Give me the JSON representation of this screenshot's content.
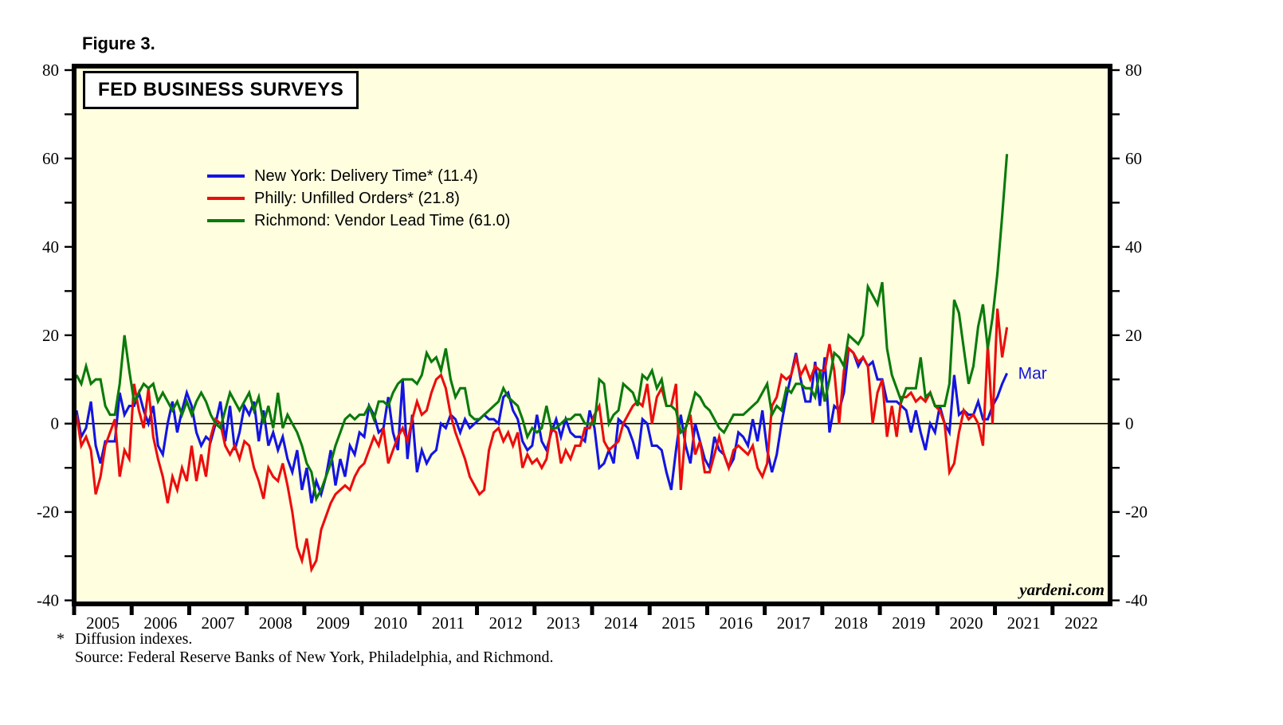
{
  "figure_label": "Figure 3.",
  "chart_title": "FED BUSINESS SURVEYS",
  "end_label": "Mar",
  "watermark": "yardeni.com",
  "footnote": {
    "marker": "*",
    "line1": "Diffusion indexes.",
    "line2": "Source: Federal Reserve Banks of New York, Philadelphia, and Richmond."
  },
  "chart_data": {
    "type": "line",
    "title": "FED BUSINESS SURVEYS",
    "x_domain": [
      2005,
      2023
    ],
    "x_tick_years": [
      2005,
      2006,
      2007,
      2008,
      2009,
      2010,
      2011,
      2012,
      2013,
      2014,
      2015,
      2016,
      2017,
      2018,
      2019,
      2020,
      2021,
      2022
    ],
    "y_axis": {
      "min": -40,
      "max": 80,
      "minor_step": 10,
      "label_step": 20,
      "labels": [
        80,
        60,
        40,
        20,
        0,
        -20,
        -40
      ],
      "sides": [
        "left",
        "right"
      ]
    },
    "plot_bg": "#FFFFE0",
    "zero_line": 0,
    "legend": [
      {
        "label": "New York: Delivery Time* (11.4)",
        "color": "#1414E1",
        "latest": 11.4
      },
      {
        "label": "Philly: Unfilled Orders* (21.8)",
        "color": "#EC0D0D",
        "latest": 21.8
      },
      {
        "label": "Richmond: Vendor Lead Time (61.0)",
        "color": "#0B7A0B",
        "latest": 61.0
      }
    ],
    "last_point": {
      "year": 2021,
      "month": 3,
      "label": "Mar"
    },
    "series": [
      {
        "name": "New York: Delivery Time",
        "color": "#1414E1",
        "monthly": {
          "2005": [
            3,
            -3,
            -1,
            5,
            -5,
            -9,
            -4,
            -4,
            -4,
            7,
            2,
            4
          ],
          "2006": [
            4,
            7,
            3,
            0,
            4,
            -5,
            -7,
            0,
            5,
            -2,
            3,
            7
          ],
          "2007": [
            4,
            -2,
            -5,
            -3,
            -4,
            0,
            5,
            -4,
            4,
            -6,
            -2,
            4
          ],
          "2008": [
            2,
            5,
            -4,
            3,
            -5,
            -2,
            -6,
            -3,
            -8,
            -11,
            -6,
            -15
          ],
          "2009": [
            -10,
            -18,
            -13,
            -16,
            -12,
            -6,
            -14,
            -8,
            -12,
            -5,
            -7,
            -2
          ],
          "2010": [
            -3,
            4,
            2,
            -2,
            -1,
            6,
            -2,
            -6,
            10,
            -8,
            2,
            -11
          ],
          "2011": [
            -6,
            -9,
            -7,
            -6,
            0,
            -1,
            2,
            1,
            -2,
            1,
            -1,
            0
          ],
          "2012": [
            1,
            2,
            1,
            1,
            0,
            6,
            7,
            3,
            1,
            -4,
            -6,
            -5
          ],
          "2013": [
            2,
            -4,
            -6,
            -2,
            1,
            -3,
            1,
            -2,
            -3,
            -3,
            -4,
            3
          ],
          "2014": [
            -1,
            -10,
            -9,
            -6,
            -9,
            1,
            0,
            -1,
            -4,
            -8,
            1,
            0
          ],
          "2015": [
            -5,
            -5,
            -6,
            -11,
            -15,
            -6,
            2,
            -5,
            -9,
            0,
            -4,
            -8
          ],
          "2016": [
            -10,
            -3,
            -6,
            -7,
            -10,
            -8,
            -2,
            -3,
            -5,
            1,
            -4,
            3
          ],
          "2017": [
            -6,
            -11,
            -7,
            0,
            6,
            11,
            16,
            10,
            5,
            5,
            14,
            4
          ],
          "2018": [
            15,
            -2,
            4,
            3,
            7,
            17,
            16,
            13,
            15,
            13,
            14,
            10
          ],
          "2019": [
            10,
            5,
            5,
            5,
            4,
            3,
            -2,
            3,
            -2,
            -6,
            0,
            -2
          ],
          "2020": [
            4,
            0,
            -2,
            11,
            2,
            3,
            2,
            2,
            5,
            1,
            1,
            4
          ],
          "2021": [
            6,
            9,
            11.4
          ]
        }
      },
      {
        "name": "Philly: Unfilled Orders",
        "color": "#EC0D0D",
        "monthly": {
          "2005": [
            2,
            -5,
            -3,
            -6,
            -16,
            -12,
            -5,
            -2,
            1,
            -12,
            -6,
            -8
          ],
          "2006": [
            9,
            3,
            -1,
            8,
            -3,
            -8,
            -12,
            -18,
            -12,
            -15,
            -10,
            -13
          ],
          "2007": [
            -5,
            -13,
            -7,
            -12,
            -3,
            1,
            0,
            -5,
            -7,
            -5,
            -8,
            -4
          ],
          "2008": [
            -5,
            -10,
            -13,
            -17,
            -10,
            -12,
            -13,
            -9,
            -14,
            -20,
            -28,
            -31
          ],
          "2009": [
            -26,
            -33,
            -31,
            -24,
            -21,
            -18,
            -16,
            -15,
            -14,
            -15,
            -12,
            -10
          ],
          "2010": [
            -9,
            -6,
            -3,
            -5,
            -1,
            -9,
            -6,
            -3,
            -1,
            -4,
            1,
            5
          ],
          "2011": [
            2,
            3,
            7,
            10,
            11,
            8,
            2,
            -2,
            -5,
            -8,
            -12,
            -14
          ],
          "2012": [
            -16,
            -15,
            -6,
            -2,
            -1,
            -4,
            -2,
            -5,
            -2,
            -10,
            -7,
            -9
          ],
          "2013": [
            -8,
            -10,
            -8,
            -1,
            -2,
            -9,
            -6,
            -8,
            -5,
            -5,
            -1,
            -1
          ],
          "2014": [
            2,
            4,
            -4,
            -6,
            -5,
            -4,
            0,
            2,
            4,
            5,
            4,
            9
          ],
          "2015": [
            0,
            6,
            8,
            4,
            4,
            9,
            -15,
            -1,
            2,
            -7,
            -4,
            -11
          ],
          "2016": [
            -11,
            -7,
            -3,
            -7,
            -10,
            -6,
            -5,
            -6,
            -7,
            -5,
            -10,
            -12
          ],
          "2017": [
            -9,
            4,
            6,
            11,
            10,
            11,
            15,
            11,
            13,
            10,
            13,
            12
          ],
          "2018": [
            12,
            18,
            12,
            0,
            12,
            17,
            16,
            14,
            15,
            13,
            0,
            7
          ],
          "2019": [
            10,
            -3,
            4,
            -3,
            6,
            6,
            7,
            5,
            6,
            5,
            7,
            4
          ],
          "2020": [
            3,
            0,
            -11,
            -9,
            -2,
            3,
            1,
            2,
            0,
            -5,
            18,
            0
          ],
          "2021": [
            26,
            15,
            21.8
          ]
        }
      },
      {
        "name": "Richmond: Vendor Lead Time",
        "color": "#0B7A0B",
        "monthly": {
          "2005": [
            11,
            9,
            13,
            9,
            10,
            10,
            4,
            2,
            2,
            9,
            20,
            12
          ],
          "2006": [
            5,
            7,
            9,
            8,
            9,
            5,
            7,
            5,
            3,
            5,
            2,
            5
          ],
          "2007": [
            2,
            5,
            7,
            5,
            2,
            0,
            -1,
            3,
            7,
            5,
            3,
            5
          ],
          "2008": [
            7,
            3,
            6,
            0,
            4,
            -1,
            7,
            -1,
            2,
            0,
            -2,
            -5
          ],
          "2009": [
            -9,
            -11,
            -17,
            -15,
            -12,
            -9,
            -5,
            -2,
            1,
            2,
            1,
            2
          ],
          "2010": [
            2,
            4,
            1,
            5,
            5,
            4,
            7,
            9,
            10,
            10,
            10,
            9
          ],
          "2011": [
            11,
            16,
            14,
            15,
            12,
            17,
            10,
            6,
            8,
            8,
            2,
            1
          ],
          "2012": [
            1,
            2,
            3,
            4,
            5,
            8,
            6,
            5,
            4,
            1,
            -3,
            -1
          ],
          "2013": [
            -2,
            -1,
            4,
            -1,
            -1,
            0,
            1,
            1,
            2,
            2,
            0,
            0
          ],
          "2014": [
            0,
            10,
            9,
            0,
            2,
            3,
            9,
            8,
            7,
            4,
            11,
            10
          ],
          "2015": [
            12,
            8,
            10,
            4,
            4,
            3,
            -2,
            -1,
            3,
            7,
            6,
            4
          ],
          "2016": [
            3,
            1,
            -1,
            -2,
            0,
            2,
            2,
            2,
            3,
            4,
            5,
            7
          ],
          "2017": [
            9,
            2,
            4,
            3,
            8,
            7,
            9,
            9,
            8,
            8,
            6,
            12
          ],
          "2018": [
            5,
            10,
            16,
            15,
            13,
            20,
            19,
            18,
            20,
            31,
            29,
            27
          ],
          "2019": [
            32,
            17,
            11,
            8,
            5,
            8,
            8,
            8,
            15,
            6,
            7,
            4
          ],
          "2020": [
            4,
            4,
            9,
            28,
            25,
            17,
            9,
            13,
            22,
            27,
            17,
            24
          ],
          "2021": [
            34,
            47,
            61.0
          ]
        }
      }
    ]
  }
}
